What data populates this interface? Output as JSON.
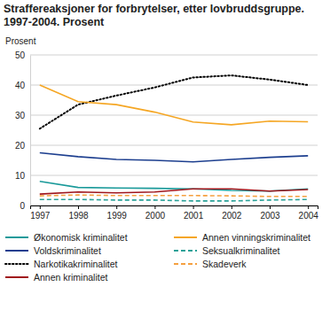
{
  "chart_data": {
    "type": "line",
    "title": "Straffereaksjoner for forbrytelser, etter lovbruddsgruppe.",
    "subtitle": "1997-2004. Prosent",
    "y_label": "Prosent",
    "categories": [
      "1997",
      "1998",
      "1999",
      "2000",
      "2001",
      "2002",
      "2003",
      "2004"
    ],
    "series": [
      {
        "name": "Økonomisk kriminalitet",
        "color": "#1a9a9a",
        "line_style": "solid",
        "values": [
          8,
          6,
          5.8,
          5.7,
          5.5,
          5,
          4.8,
          5.5
        ]
      },
      {
        "name": "Voldskriminalitet",
        "color": "#1d3f8f",
        "line_style": "solid",
        "values": [
          17.5,
          16.2,
          15.3,
          15,
          14.5,
          15.3,
          16,
          16.5
        ]
      },
      {
        "name": "Narkotikakriminalitet",
        "color": "#000000",
        "line_style": "dotted",
        "values": [
          25.5,
          33.5,
          36.5,
          39.2,
          42.5,
          43.2,
          41.8,
          40
        ]
      },
      {
        "name": "Annen kriminalitet",
        "color": "#a0161c",
        "line_style": "solid",
        "values": [
          3.8,
          4.5,
          4.2,
          4.5,
          5.5,
          5.5,
          4.8,
          5.3
        ]
      },
      {
        "name": "Annen vinningskriminalitet",
        "color": "#f5a623",
        "line_style": "solid",
        "values": [
          40,
          34.5,
          33.5,
          31,
          27.7,
          26.8,
          28,
          27.8
        ]
      },
      {
        "name": "Seksualkriminalitet",
        "color": "#2aa198",
        "line_style": "dashed",
        "values": [
          2,
          2,
          1.8,
          1.8,
          1.5,
          1.5,
          1.8,
          2
        ]
      },
      {
        "name": "Skadeverk",
        "color": "#f5a040",
        "line_style": "dashed",
        "values": [
          3.2,
          3.5,
          3.3,
          3.3,
          3.3,
          3.2,
          3,
          3
        ]
      }
    ],
    "ylim": [
      0,
      50
    ],
    "yticks": [
      0,
      10,
      20,
      30,
      40,
      50
    ],
    "grid": true,
    "legend": "bottom"
  }
}
